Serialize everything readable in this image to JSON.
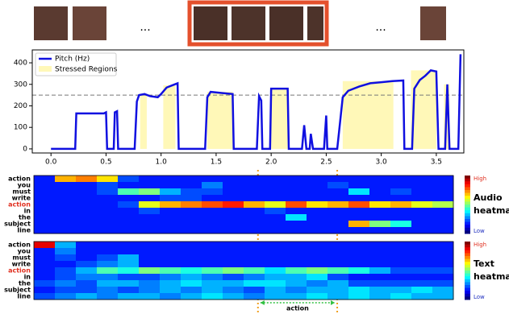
{
  "frames": {
    "ellipsis": [
      "...",
      "..."
    ]
  },
  "chart_data": [
    {
      "type": "line",
      "x": [
        0.0,
        0.22,
        0.23,
        0.48,
        0.5,
        0.51,
        0.57,
        0.58,
        0.6,
        0.61,
        0.76,
        0.78,
        0.8,
        0.85,
        0.9,
        0.97,
        1.0,
        1.05,
        1.1,
        1.15,
        1.16,
        1.4,
        1.42,
        1.45,
        1.55,
        1.65,
        1.66,
        1.87,
        1.89,
        1.91,
        1.92,
        1.99,
        2.0,
        2.15,
        2.16,
        2.28,
        2.3,
        2.32,
        2.35,
        2.36,
        2.38,
        2.48,
        2.5,
        2.51,
        2.6,
        2.65,
        2.7,
        2.8,
        2.9,
        3.0,
        3.1,
        3.2,
        3.21,
        3.28,
        3.3,
        3.35,
        3.4,
        3.45,
        3.5,
        3.52,
        3.58,
        3.6,
        3.62,
        3.7,
        3.72
      ],
      "series": [
        {
          "name": "Pitch (Hz)",
          "color": "#1010e0",
          "values": [
            0,
            0,
            165,
            165,
            170,
            0,
            0,
            170,
            175,
            0,
            0,
            220,
            250,
            255,
            245,
            240,
            255,
            285,
            295,
            305,
            0,
            0,
            240,
            265,
            260,
            255,
            0,
            0,
            245,
            225,
            0,
            0,
            280,
            280,
            0,
            0,
            110,
            0,
            0,
            70,
            0,
            0,
            155,
            0,
            0,
            240,
            270,
            290,
            305,
            310,
            315,
            318,
            0,
            0,
            280,
            320,
            340,
            365,
            360,
            0,
            0,
            300,
            0,
            0,
            440
          ]
        }
      ],
      "regions": {
        "name": "Stressed Regions",
        "color": "#fff8b8",
        "spans": [
          [
            0.81,
            0.87
          ],
          [
            1.02,
            1.13
          ],
          [
            1.42,
            1.65
          ],
          [
            2.0,
            2.15
          ],
          [
            2.65,
            3.11
          ],
          [
            3.27,
            3.5
          ],
          [
            3.57,
            3.62
          ]
        ]
      },
      "threshold": 250,
      "action_span": [
        1.88,
        2.6
      ],
      "action_label": "action",
      "xlim": [
        -0.17,
        3.75
      ],
      "ylim": [
        -19,
        460
      ],
      "xticks": [
        {
          "value": 0,
          "label": "0.0"
        },
        {
          "value": 0.5,
          "label": "0.5"
        },
        {
          "value": 1,
          "label": "1.0"
        },
        {
          "value": 1.5,
          "label": "1.5"
        },
        {
          "value": 2,
          "label": "2.0"
        },
        {
          "value": 2.5,
          "label": "2.5"
        },
        {
          "value": 3,
          "label": "3.0"
        },
        {
          "value": 3.5,
          "label": "3.5"
        }
      ],
      "yticks": [
        0,
        100,
        200,
        300,
        400
      ],
      "legend": "upper left"
    },
    {
      "type": "heatmap",
      "title_lines": [
        "Audio",
        "heatmap"
      ],
      "high": "High",
      "low": "Low",
      "zlim": [
        0,
        1
      ],
      "highlight_row": 4,
      "highlight_color": "#e03020",
      "rows": [
        "action",
        "you",
        "must",
        "write",
        "action",
        "in",
        "the",
        "subject",
        "line"
      ],
      "values": [
        [
          0.15,
          0.7,
          0.75,
          0.65,
          0.2,
          0.15,
          0.15,
          0.15,
          0.15,
          0.15,
          0.15,
          0.15,
          0.15,
          0.15,
          0.15,
          0.15,
          0.15,
          0.15,
          0.15,
          0.15
        ],
        [
          0.15,
          0.15,
          0.15,
          0.2,
          0.15,
          0.15,
          0.15,
          0.15,
          0.25,
          0.15,
          0.15,
          0.15,
          0.15,
          0.15,
          0.2,
          0.15,
          0.15,
          0.15,
          0.15,
          0.15
        ],
        [
          0.15,
          0.15,
          0.15,
          0.2,
          0.45,
          0.5,
          0.3,
          0.2,
          0.2,
          0.15,
          0.15,
          0.15,
          0.15,
          0.15,
          0.15,
          0.35,
          0.15,
          0.2,
          0.15,
          0.15
        ],
        [
          0.15,
          0.15,
          0.15,
          0.15,
          0.15,
          0.15,
          0.2,
          0.2,
          0.15,
          0.15,
          0.15,
          0.15,
          0.15,
          0.15,
          0.15,
          0.15,
          0.15,
          0.15,
          0.15,
          0.15
        ],
        [
          0.15,
          0.15,
          0.15,
          0.15,
          0.2,
          0.6,
          0.7,
          0.75,
          0.8,
          0.85,
          0.7,
          0.6,
          0.8,
          0.65,
          0.7,
          0.8,
          0.65,
          0.7,
          0.6,
          0.55
        ],
        [
          0.15,
          0.15,
          0.15,
          0.15,
          0.15,
          0.2,
          0.15,
          0.15,
          0.15,
          0.15,
          0.15,
          0.2,
          0.15,
          0.15,
          0.15,
          0.15,
          0.15,
          0.15,
          0.15,
          0.15
        ],
        [
          0.15,
          0.15,
          0.15,
          0.15,
          0.15,
          0.15,
          0.15,
          0.15,
          0.15,
          0.15,
          0.15,
          0.15,
          0.35,
          0.15,
          0.15,
          0.15,
          0.15,
          0.15,
          0.15,
          0.15
        ],
        [
          0.15,
          0.15,
          0.15,
          0.15,
          0.15,
          0.15,
          0.15,
          0.15,
          0.15,
          0.15,
          0.15,
          0.15,
          0.15,
          0.15,
          0.15,
          0.7,
          0.5,
          0.4,
          0.15,
          0.15
        ],
        [
          0.15,
          0.15,
          0.15,
          0.15,
          0.15,
          0.15,
          0.15,
          0.15,
          0.15,
          0.15,
          0.15,
          0.15,
          0.15,
          0.15,
          0.15,
          0.15,
          0.15,
          0.15,
          0.15,
          0.15
        ]
      ]
    },
    {
      "type": "heatmap",
      "title_lines": [
        "Text",
        "heatmap"
      ],
      "high": "High",
      "low": "Low",
      "zlim": [
        0,
        1
      ],
      "highlight_row": 4,
      "highlight_color": "#e03020",
      "rows": [
        "action",
        "you",
        "must",
        "write",
        "action",
        "in",
        "the",
        "subject",
        "line"
      ],
      "values": [
        [
          0.9,
          0.3,
          0.15,
          0.15,
          0.15,
          0.15,
          0.15,
          0.15,
          0.15,
          0.15,
          0.15,
          0.15,
          0.15,
          0.15,
          0.15,
          0.15,
          0.15,
          0.15,
          0.15,
          0.15
        ],
        [
          0.15,
          0.25,
          0.15,
          0.15,
          0.15,
          0.15,
          0.15,
          0.15,
          0.15,
          0.15,
          0.15,
          0.15,
          0.15,
          0.15,
          0.15,
          0.15,
          0.15,
          0.15,
          0.15,
          0.15
        ],
        [
          0.15,
          0.2,
          0.15,
          0.2,
          0.3,
          0.15,
          0.15,
          0.15,
          0.15,
          0.15,
          0.15,
          0.15,
          0.15,
          0.15,
          0.15,
          0.15,
          0.15,
          0.15,
          0.15,
          0.15
        ],
        [
          0.15,
          0.15,
          0.2,
          0.25,
          0.3,
          0.15,
          0.15,
          0.15,
          0.15,
          0.15,
          0.15,
          0.15,
          0.15,
          0.15,
          0.15,
          0.15,
          0.15,
          0.15,
          0.15,
          0.15
        ],
        [
          0.15,
          0.2,
          0.3,
          0.45,
          0.4,
          0.5,
          0.45,
          0.4,
          0.45,
          0.5,
          0.45,
          0.35,
          0.45,
          0.5,
          0.45,
          0.4,
          0.3,
          0.2,
          0.2,
          0.2
        ],
        [
          0.15,
          0.2,
          0.25,
          0.25,
          0.2,
          0.2,
          0.25,
          0.3,
          0.25,
          0.2,
          0.25,
          0.3,
          0.3,
          0.35,
          0.2,
          0.15,
          0.15,
          0.15,
          0.15,
          0.15
        ],
        [
          0.2,
          0.25,
          0.2,
          0.3,
          0.3,
          0.25,
          0.3,
          0.35,
          0.3,
          0.3,
          0.35,
          0.35,
          0.3,
          0.25,
          0.3,
          0.2,
          0.2,
          0.2,
          0.2,
          0.2
        ],
        [
          0.15,
          0.2,
          0.2,
          0.25,
          0.2,
          0.25,
          0.3,
          0.25,
          0.3,
          0.25,
          0.2,
          0.3,
          0.25,
          0.3,
          0.3,
          0.35,
          0.3,
          0.3,
          0.35,
          0.3
        ],
        [
          0.2,
          0.25,
          0.3,
          0.25,
          0.3,
          0.3,
          0.25,
          0.3,
          0.35,
          0.3,
          0.25,
          0.3,
          0.3,
          0.35,
          0.3,
          0.35,
          0.3,
          0.35,
          0.3,
          0.3
        ]
      ]
    }
  ]
}
